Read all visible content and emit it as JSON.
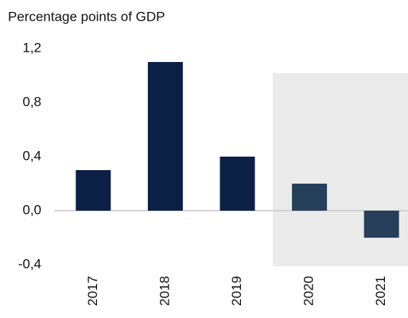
{
  "chart_data": {
    "type": "bar",
    "y_label": "Percentage points of GDP",
    "categories": [
      "2017",
      "2018",
      "2019",
      "2020",
      "2021"
    ],
    "values": [
      0.3,
      1.1,
      0.4,
      0.2,
      -0.2
    ],
    "colors": [
      "#0c1f45",
      "#0c1f45",
      "#0c1f45",
      "#263f5b",
      "#263f5b"
    ],
    "ylim": [
      -0.4,
      1.2
    ],
    "yticks": [
      {
        "value": -0.4,
        "label": "-0,4"
      },
      {
        "value": 0,
        "label": "0,0"
      },
      {
        "value": 0.4,
        "label": "0,4"
      },
      {
        "value": 0.8,
        "label": "0,8"
      },
      {
        "value": 1.2,
        "label": "1,2"
      }
    ]
  }
}
